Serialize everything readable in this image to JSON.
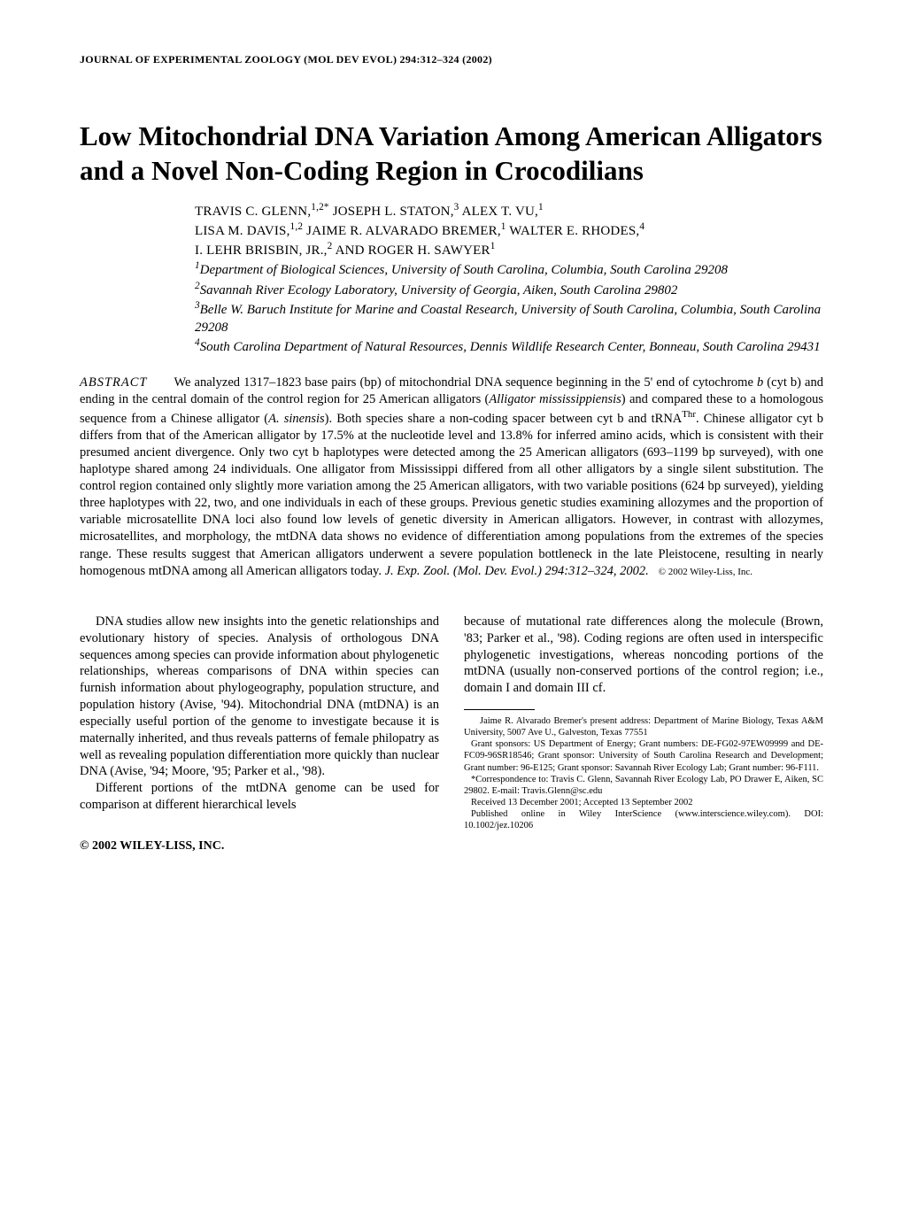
{
  "journalHeader": "JOURNAL OF EXPERIMENTAL ZOOLOGY (MOL DEV EVOL) 294:312–324 (2002)",
  "title": "Low Mitochondrial DNA Variation Among American Alligators and a Novel Non-Coding Region in Crocodilians",
  "authorsLine1": "TRAVIS C. GLENN,",
  "authorsSup1": "1,2*",
  "authorsLine1b": " JOSEPH L. STATON,",
  "authorsSup2": "3",
  "authorsLine1c": " ALEX T. VU,",
  "authorsSup3": "1",
  "authorsLine2": "LISA M. DAVIS,",
  "authorsSup4": "1,2",
  "authorsLine2b": " JAIME R. ALVARADO BREMER,",
  "authorsSup5": "1",
  "authorsLine2c": " WALTER E. RHODES,",
  "authorsSup6": "4",
  "authorsLine3": "I. LEHR BRISBIN, JR.,",
  "authorsSup7": "2",
  "authorsLine3b": " AND ROGER H. SAWYER",
  "authorsSup8": "1",
  "affil1sup": "1",
  "affil1": "Department of Biological Sciences, University of South Carolina, Columbia, South Carolina 29208",
  "affil2sup": "2",
  "affil2": "Savannah River Ecology Laboratory, University of Georgia, Aiken, South Carolina 29802",
  "affil3sup": "3",
  "affil3": "Belle W. Baruch Institute for Marine and Coastal Research, University of South Carolina, Columbia, South Carolina 29208",
  "affil4sup": "4",
  "affil4": "South Carolina Department of Natural Resources, Dennis Wildlife Research Center, Bonneau, South Carolina 29431",
  "abstractLabel": "ABSTRACT",
  "abstractPart1": "We analyzed 1317–1823 base pairs (bp) of mitochondrial DNA sequence beginning in the 5' end of cytochrome ",
  "abstractItalic1": "b",
  "abstractPart2": " (cyt b) and ending in the central domain of the control region for 25 American alligators (",
  "abstractItalic2": "Alligator mississippiensis",
  "abstractPart3": ") and compared these to a homologous sequence from a Chinese alligator (",
  "abstractItalic3": "A. sinensis",
  "abstractPart4": "). Both species share a non-coding spacer between cyt b and tRNA",
  "abstractSup1": "Thr",
  "abstractPart5": ". Chinese alligator cyt b differs from that of the American alligator by 17.5% at the nucleotide level and 13.8% for inferred amino acids, which is consistent with their presumed ancient divergence. Only two cyt b haplotypes were detected among the 25 American alligators (693–1199 bp surveyed), with one haplotype shared among 24 individuals. One alligator from Mississippi differed from all other alligators by a single silent substitution. The control region contained only slightly more variation among the 25 American alligators, with two variable positions (624 bp surveyed), yielding three haplotypes with 22, two, and one individuals in each of these groups. Previous genetic studies examining allozymes and the proportion of variable microsatellite DNA loci also found low levels of genetic diversity in American alligators. However, in contrast with allozymes, microsatellites, and morphology, the mtDNA data shows no evidence of differentiation among populations from the extremes of the species range. These results suggest that American alligators underwent a severe population bottleneck in the late Pleistocene, resulting in nearly homogenous mtDNA among all American alligators today. ",
  "abstractCitation": "J. Exp. Zool. (Mol. Dev. Evol.) 294:312–324, 2002.",
  "abstractCopyright": "© 2002 Wiley-Liss, Inc.",
  "col1p1": "DNA studies allow new insights into the genetic relationships and evolutionary history of species. Analysis of orthologous DNA sequences among species can provide information about phylogenetic relationships, whereas comparisons of DNA within species can furnish information about phylogeography, population structure, and population history (Avise, '94). Mitochondrial DNA (mtDNA) is an especially useful portion of the genome to investigate because it is maternally inherited, and thus reveals patterns of female philopatry as well as revealing population differentiation more quickly than nuclear DNA (Avise, '94; Moore, '95; Parker et al., '98).",
  "col1p2": "Different portions of the mtDNA genome can be used for comparison at different hierarchical levels",
  "col2p1": "because of mutational rate differences along the molecule (Brown, '83; Parker et al., '98). Coding regions are often used in interspecific phylogenetic investigations, whereas noncoding portions of the mtDNA (usually non-conserved portions of the control region; i.e., domain I and domain III cf.",
  "fn1": "Jaime R. Alvarado Bremer's present address: Department of Marine Biology, Texas A&M University, 5007 Ave U., Galveston, Texas 77551",
  "fn2": "Grant sponsors: US Department of Energy; Grant numbers: DE-FG02-97EW09999 and DE-FC09-96SR18546; Grant sponsor: University of South Carolina Research and Development; Grant number: 96-E125; Grant sponsor: Savannah River Ecology Lab; Grant number: 96-F111.",
  "fn3": "*Correspondence to: Travis C. Glenn, Savannah River Ecology Lab, PO Drawer E, Aiken, SC 29802. E-mail: Travis.Glenn@sc.edu",
  "fn4": "Received 13 December 2001; Accepted 13 September 2002",
  "fn5": "Published online in Wiley InterScience (www.interscience.wiley.com). DOI: 10.1002/jez.10206",
  "copyright": "© 2002 WILEY-LISS, INC."
}
